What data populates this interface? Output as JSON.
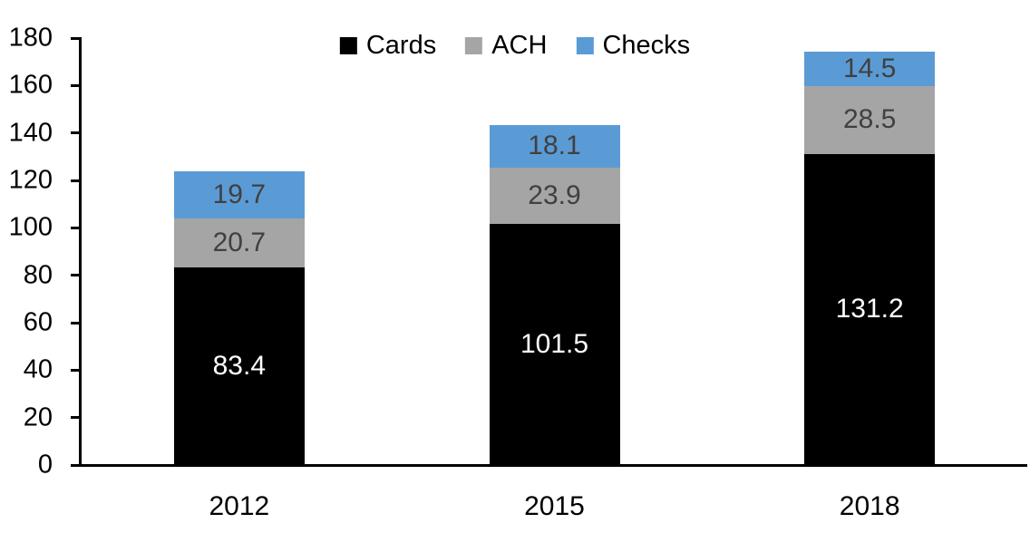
{
  "chart_data": {
    "type": "bar",
    "stacked": true,
    "title": "",
    "xlabel": "",
    "ylabel": "",
    "categories": [
      "2012",
      "2015",
      "2018"
    ],
    "series": [
      {
        "name": "Cards",
        "color": "#000000",
        "label_color": "#ffffff",
        "values": [
          83.4,
          101.5,
          131.2
        ]
      },
      {
        "name": "ACH",
        "color": "#a5a5a5",
        "label_color": "#404040",
        "values": [
          20.7,
          23.9,
          28.5
        ]
      },
      {
        "name": "Checks",
        "color": "#5b9bd5",
        "label_color": "#404040",
        "values": [
          19.7,
          18.1,
          14.5
        ]
      }
    ],
    "ylim": [
      0,
      180
    ],
    "ytick_step": 20,
    "ytick_labels": [
      "0",
      "20",
      "40",
      "60",
      "80",
      "100",
      "120",
      "140",
      "160",
      "180"
    ],
    "grid": false,
    "legend_position": "top-center",
    "axis_color": "#000000",
    "background_color": "#ffffff",
    "value_decimals": 1
  }
}
